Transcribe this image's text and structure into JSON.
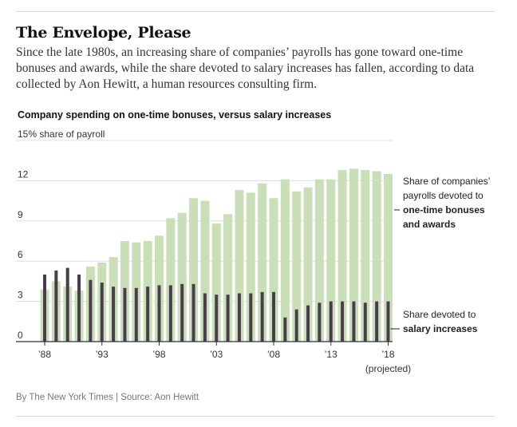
{
  "header": {
    "title": "The Envelope, Please",
    "subtitle": "Since the late 1980s, an increasing share of companies’ payrolls has gone toward one-time bonuses and awards, while the share devoted to salary increases has fallen, according to data collected by Aon Hewitt, a human resources consulting firm."
  },
  "footer": {
    "credit": "By The New York Times | Source: Aon Hewitt"
  },
  "colors": {
    "bonus_bar": "#c9dfb8",
    "salary_bar": "#4a3c4c",
    "gridline": "#dddddd",
    "baseline": "#333333"
  },
  "chart_data": {
    "type": "bar",
    "title": "Company spending on one-time bonuses, versus salary increases",
    "ylabel": "15% share of payroll",
    "ylim": [
      0,
      15
    ],
    "yticks": [
      {
        "value": 15,
        "label": "15% share of payroll"
      },
      {
        "value": 12,
        "label": "12"
      },
      {
        "value": 9,
        "label": "9"
      },
      {
        "value": 6,
        "label": "6"
      },
      {
        "value": 3,
        "label": "3"
      },
      {
        "value": 0,
        "label": "0"
      }
    ],
    "xticks": [
      {
        "year": 1988,
        "label": "’88"
      },
      {
        "year": 1993,
        "label": "’93"
      },
      {
        "year": 1998,
        "label": "’98"
      },
      {
        "year": 2003,
        "label": "’03"
      },
      {
        "year": 2008,
        "label": "’08"
      },
      {
        "year": 2013,
        "label": "’13"
      },
      {
        "year": 2018,
        "label": "’18",
        "sublabel": "(projected)"
      }
    ],
    "years": [
      1988,
      1989,
      1990,
      1991,
      1992,
      1993,
      1994,
      1995,
      1996,
      1997,
      1998,
      1999,
      2000,
      2001,
      2002,
      2003,
      2004,
      2005,
      2006,
      2007,
      2008,
      2009,
      2010,
      2011,
      2012,
      2013,
      2014,
      2015,
      2016,
      2017,
      2018
    ],
    "series": [
      {
        "key": "bonus",
        "values": [
          3.9,
          4.5,
          4.1,
          3.8,
          5.6,
          5.9,
          6.3,
          7.5,
          7.4,
          7.5,
          7.9,
          9.2,
          9.6,
          10.7,
          10.5,
          8.8,
          9.5,
          11.3,
          11.1,
          11.8,
          10.7,
          12.1,
          11.2,
          11.5,
          12.1,
          12.1,
          12.8,
          12.9,
          12.8,
          12.7,
          12.5
        ],
        "label_lines": [
          {
            "text": "Share of companies’",
            "bold": false
          },
          {
            "text": "payrolls devoted to",
            "bold": false
          },
          {
            "text": "one-time bonuses",
            "bold": true
          },
          {
            "text": "and awards",
            "bold": true
          }
        ]
      },
      {
        "key": "salary",
        "values": [
          5.0,
          5.3,
          5.5,
          5.0,
          4.6,
          4.4,
          4.1,
          4.0,
          4.0,
          4.1,
          4.2,
          4.2,
          4.3,
          4.3,
          3.6,
          3.5,
          3.5,
          3.6,
          3.6,
          3.7,
          3.7,
          1.8,
          2.4,
          2.7,
          2.9,
          3.0,
          3.0,
          3.0,
          2.9,
          3.0,
          3.0
        ],
        "label_lines": [
          {
            "text": "Share devoted to",
            "bold": false
          },
          {
            "text": "salary increases",
            "bold": true
          }
        ]
      }
    ]
  }
}
